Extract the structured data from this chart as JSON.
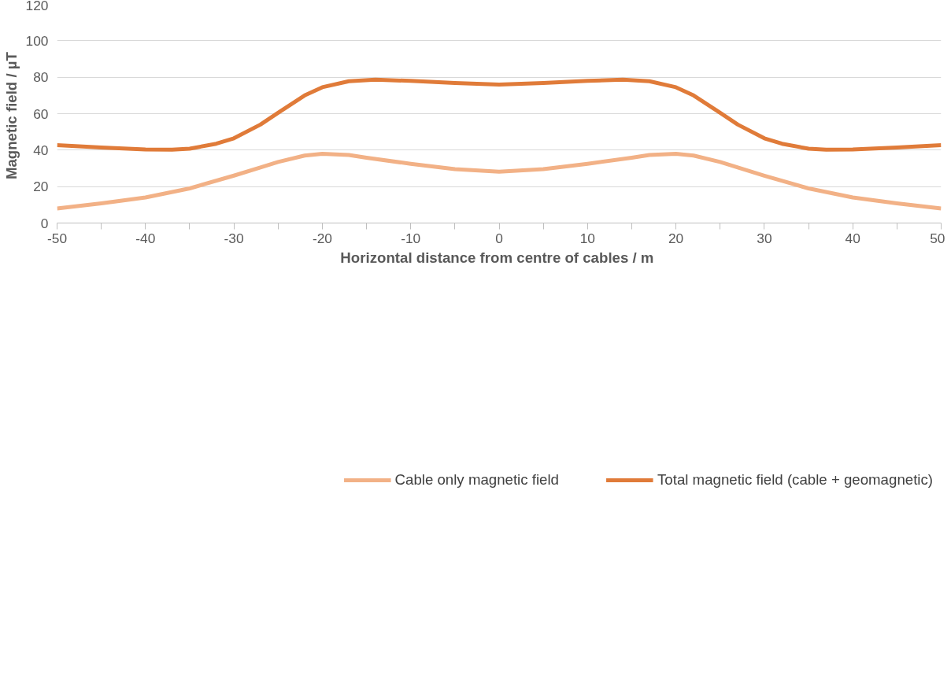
{
  "chart_data": {
    "type": "line",
    "xlabel": "Horizontal distance from centre of cables  / m",
    "ylabel": "Magnetic  field / µT",
    "xlim": [
      -50,
      50
    ],
    "ylim": [
      0,
      120
    ],
    "xticks": [
      -50,
      {
        "value": -45,
        "label": null
      },
      -40,
      {
        "value": -35,
        "label": null
      },
      -30,
      {
        "value": -25,
        "label": null
      },
      -20,
      {
        "value": -15,
        "label": null
      },
      -10,
      {
        "value": -5,
        "label": null
      },
      0,
      {
        "value": 5,
        "label": null
      },
      10,
      {
        "value": 15,
        "label": null
      },
      20,
      {
        "value": 25,
        "label": null
      },
      30,
      {
        "value": 35,
        "label": null
      },
      40,
      {
        "value": 45,
        "label": null
      },
      50
    ],
    "yticks": [
      0,
      20,
      40,
      60,
      80,
      100,
      120
    ],
    "grid": "y",
    "legend": "bottom",
    "marker": "none",
    "line_style": "solid",
    "series": [
      {
        "name": "Cable only magnetic field",
        "color": "#f2b186",
        "x": [
          -50,
          -45,
          -40,
          -35,
          -30,
          -27,
          -25,
          -22,
          -20,
          -17,
          -15,
          -10,
          -5,
          0,
          5,
          10,
          15,
          17,
          20,
          22,
          25,
          27,
          30,
          35,
          40,
          45,
          50
        ],
        "values": [
          8,
          10.8,
          14,
          19,
          26,
          30.5,
          33.5,
          37,
          38,
          37.3,
          35.8,
          32.5,
          29.6,
          28.2,
          29.6,
          32.5,
          35.8,
          37.3,
          38,
          37,
          33.5,
          30.5,
          26,
          19,
          14,
          10.8,
          8
        ]
      },
      {
        "name": "Total magnetic field (cable + geomagnetic)",
        "color": "#e07b39",
        "x": [
          -50,
          -45,
          -40,
          -37,
          -35,
          -32,
          -30,
          -27,
          -25,
          -22,
          -20,
          -17,
          -14,
          -10,
          -5,
          0,
          5,
          10,
          14,
          17,
          20,
          22,
          25,
          27,
          30,
          32,
          35,
          37,
          40,
          45,
          50
        ],
        "values": [
          42.7,
          41.4,
          40.4,
          40.2,
          40.8,
          43.5,
          46.5,
          54,
          60.5,
          70,
          74.5,
          77.8,
          78.7,
          78,
          76.8,
          76,
          76.8,
          78,
          78.7,
          77.8,
          74.5,
          70,
          60.5,
          54,
          46.5,
          43.5,
          40.8,
          40.2,
          40.4,
          41.4,
          42.7
        ]
      }
    ]
  }
}
